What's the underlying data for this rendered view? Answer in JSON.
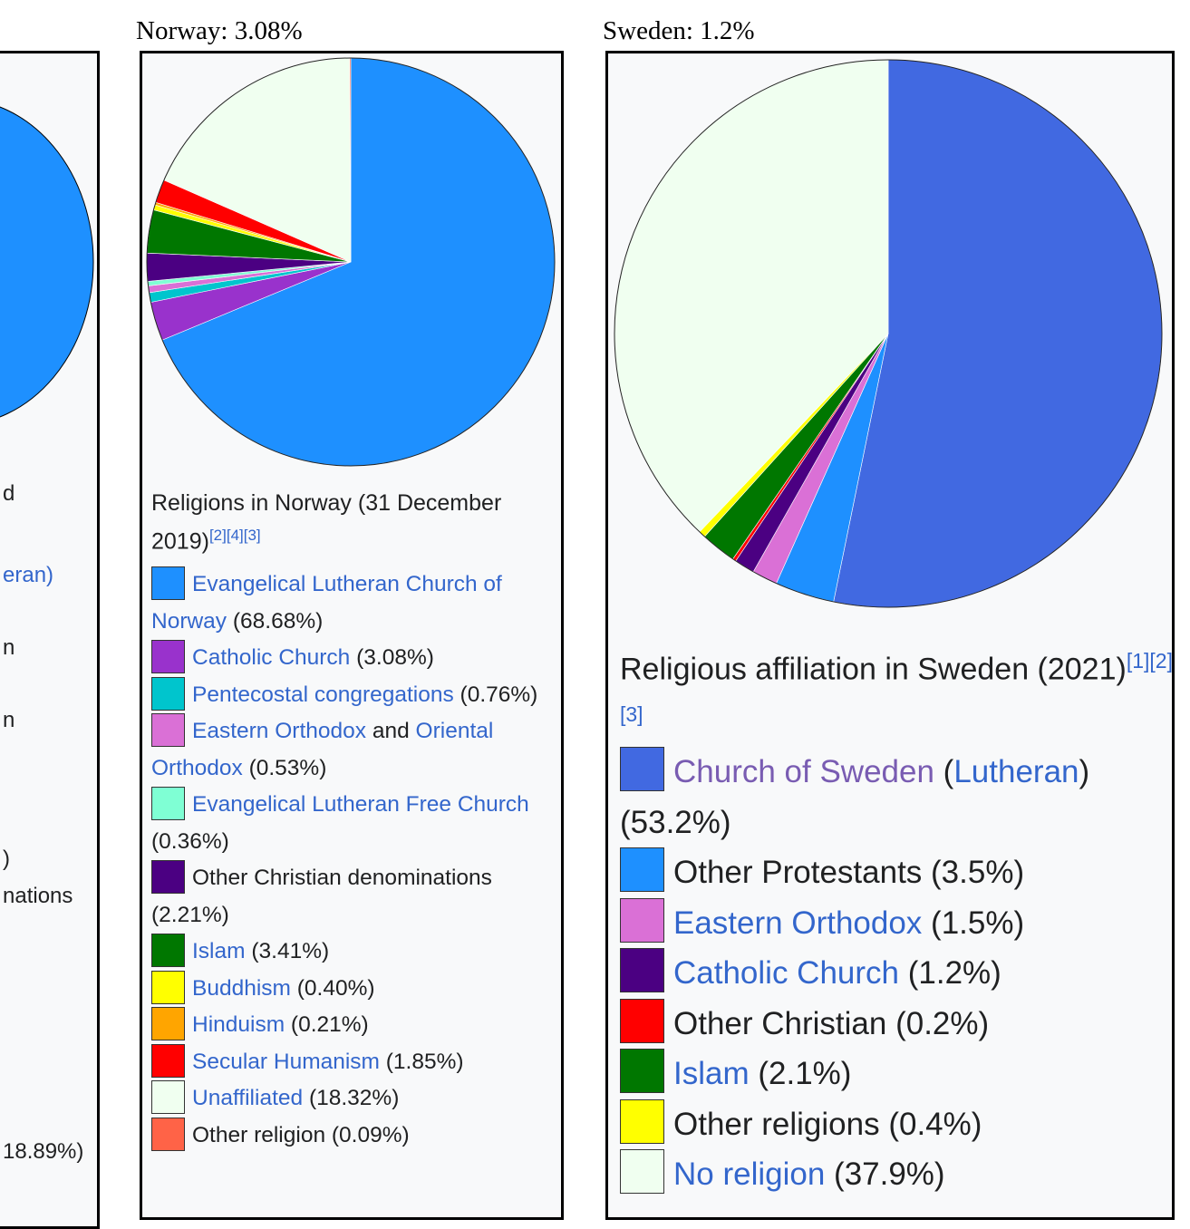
{
  "left_panel": {
    "fragments": [
      "d",
      "eran)",
      "n",
      "n",
      ")",
      "nations",
      "18.89%)"
    ]
  },
  "norway": {
    "caption": "Norway: 3.08%",
    "title": "Religions in Norway (31 December 2019)",
    "refs": "[2][4][3]",
    "legend": [
      {
        "color": "#1e90ff",
        "parts": [
          {
            "t": "Evangelical Lutheran Church of Norway",
            "link": true
          },
          {
            "t": " (68.68%)"
          }
        ]
      },
      {
        "color": "#9932cc",
        "parts": [
          {
            "t": "Catholic Church",
            "link": true
          },
          {
            "t": " (3.08%)"
          }
        ]
      },
      {
        "color": "#00c5cd",
        "parts": [
          {
            "t": "Pentecostal congregations",
            "link": true
          },
          {
            "t": " (0.76%)"
          }
        ]
      },
      {
        "color": "#da70d6",
        "parts": [
          {
            "t": "Eastern Orthodox",
            "link": true
          },
          {
            "t": " and "
          },
          {
            "t": "Oriental Orthodox",
            "link": true
          },
          {
            "t": " (0.53%)"
          }
        ]
      },
      {
        "color": "#7fffd4",
        "parts": [
          {
            "t": "Evangelical Lutheran Free Church",
            "link": true
          },
          {
            "t": " (0.36%)"
          }
        ]
      },
      {
        "color": "#4b0082",
        "parts": [
          {
            "t": "Other Christian denominations (2.21%)"
          }
        ]
      },
      {
        "color": "#007700",
        "parts": [
          {
            "t": "Islam",
            "link": true
          },
          {
            "t": " (3.41%)"
          }
        ]
      },
      {
        "color": "#ffff00",
        "parts": [
          {
            "t": "Buddhism",
            "link": true
          },
          {
            "t": " (0.40%)"
          }
        ]
      },
      {
        "color": "#ffa500",
        "parts": [
          {
            "t": "Hinduism",
            "link": true
          },
          {
            "t": " (0.21%)"
          }
        ]
      },
      {
        "color": "#ff0000",
        "parts": [
          {
            "t": "Secular Humanism",
            "link": true
          },
          {
            "t": " (1.85%)"
          }
        ]
      },
      {
        "color": "#f0fff0",
        "parts": [
          {
            "t": "Unaffiliated",
            "link": true
          },
          {
            "t": " (18.32%)"
          }
        ]
      },
      {
        "color": "#ff6347",
        "parts": [
          {
            "t": "Other religion (0.09%)"
          }
        ]
      }
    ]
  },
  "sweden": {
    "caption": "Sweden: 1.2%",
    "title": "Religious affiliation in Sweden (2021)",
    "refs": "[1][2][3]",
    "legend": [
      {
        "color": "#4169e1",
        "parts": [
          {
            "t": "Church of Sweden",
            "link": true,
            "visited": true
          },
          {
            "t": " ("
          },
          {
            "t": "Lutheran",
            "link": true
          },
          {
            "t": ") (53.2%)"
          }
        ]
      },
      {
        "color": "#1e90ff",
        "parts": [
          {
            "t": "Other Protestants (3.5%)"
          }
        ]
      },
      {
        "color": "#da70d6",
        "parts": [
          {
            "t": "Eastern Orthodox",
            "link": true
          },
          {
            "t": " (1.5%)"
          }
        ]
      },
      {
        "color": "#4b0082",
        "parts": [
          {
            "t": "Catholic Church",
            "link": true
          },
          {
            "t": " (1.2%)"
          }
        ]
      },
      {
        "color": "#ff0000",
        "parts": [
          {
            "t": "Other Christian (0.2%)"
          }
        ]
      },
      {
        "color": "#007700",
        "parts": [
          {
            "t": "Islam",
            "link": true
          },
          {
            "t": " (2.1%)"
          }
        ]
      },
      {
        "color": "#ffff00",
        "parts": [
          {
            "t": "Other religions (0.4%)"
          }
        ]
      },
      {
        "color": "#f0fff0",
        "parts": [
          {
            "t": "No religion",
            "link": true
          },
          {
            "t": " (37.9%)"
          }
        ]
      }
    ]
  },
  "chart_data": [
    {
      "type": "pie",
      "title": "Religions in Norway (31 December 2019)",
      "labels": [
        "Evangelical Lutheran Church of Norway",
        "Catholic Church",
        "Pentecostal congregations",
        "Eastern Orthodox and Oriental Orthodox",
        "Evangelical Lutheran Free Church",
        "Other Christian denominations",
        "Islam",
        "Buddhism",
        "Hinduism",
        "Secular Humanism",
        "Unaffiliated",
        "Other religion"
      ],
      "values": [
        68.68,
        3.08,
        0.76,
        0.53,
        0.36,
        2.21,
        3.41,
        0.4,
        0.21,
        1.85,
        18.32,
        0.09
      ],
      "colors": [
        "#1e90ff",
        "#9932cc",
        "#00c5cd",
        "#da70d6",
        "#7fffd4",
        "#4b0082",
        "#007700",
        "#ffff00",
        "#ffa500",
        "#ff0000",
        "#f0fff0",
        "#ff6347"
      ],
      "legend": "below"
    },
    {
      "type": "pie",
      "title": "Religious affiliation in Sweden (2021)",
      "labels": [
        "Church of Sweden (Lutheran)",
        "Other Protestants",
        "Eastern Orthodox",
        "Catholic Church",
        "Other Christian",
        "Islam",
        "Other religions",
        "No religion"
      ],
      "values": [
        53.2,
        3.5,
        1.5,
        1.2,
        0.2,
        2.1,
        0.4,
        37.9
      ],
      "colors": [
        "#4169e1",
        "#1e90ff",
        "#da70d6",
        "#4b0082",
        "#ff0000",
        "#007700",
        "#ffff00",
        "#f0fff0"
      ],
      "legend": "below"
    }
  ]
}
